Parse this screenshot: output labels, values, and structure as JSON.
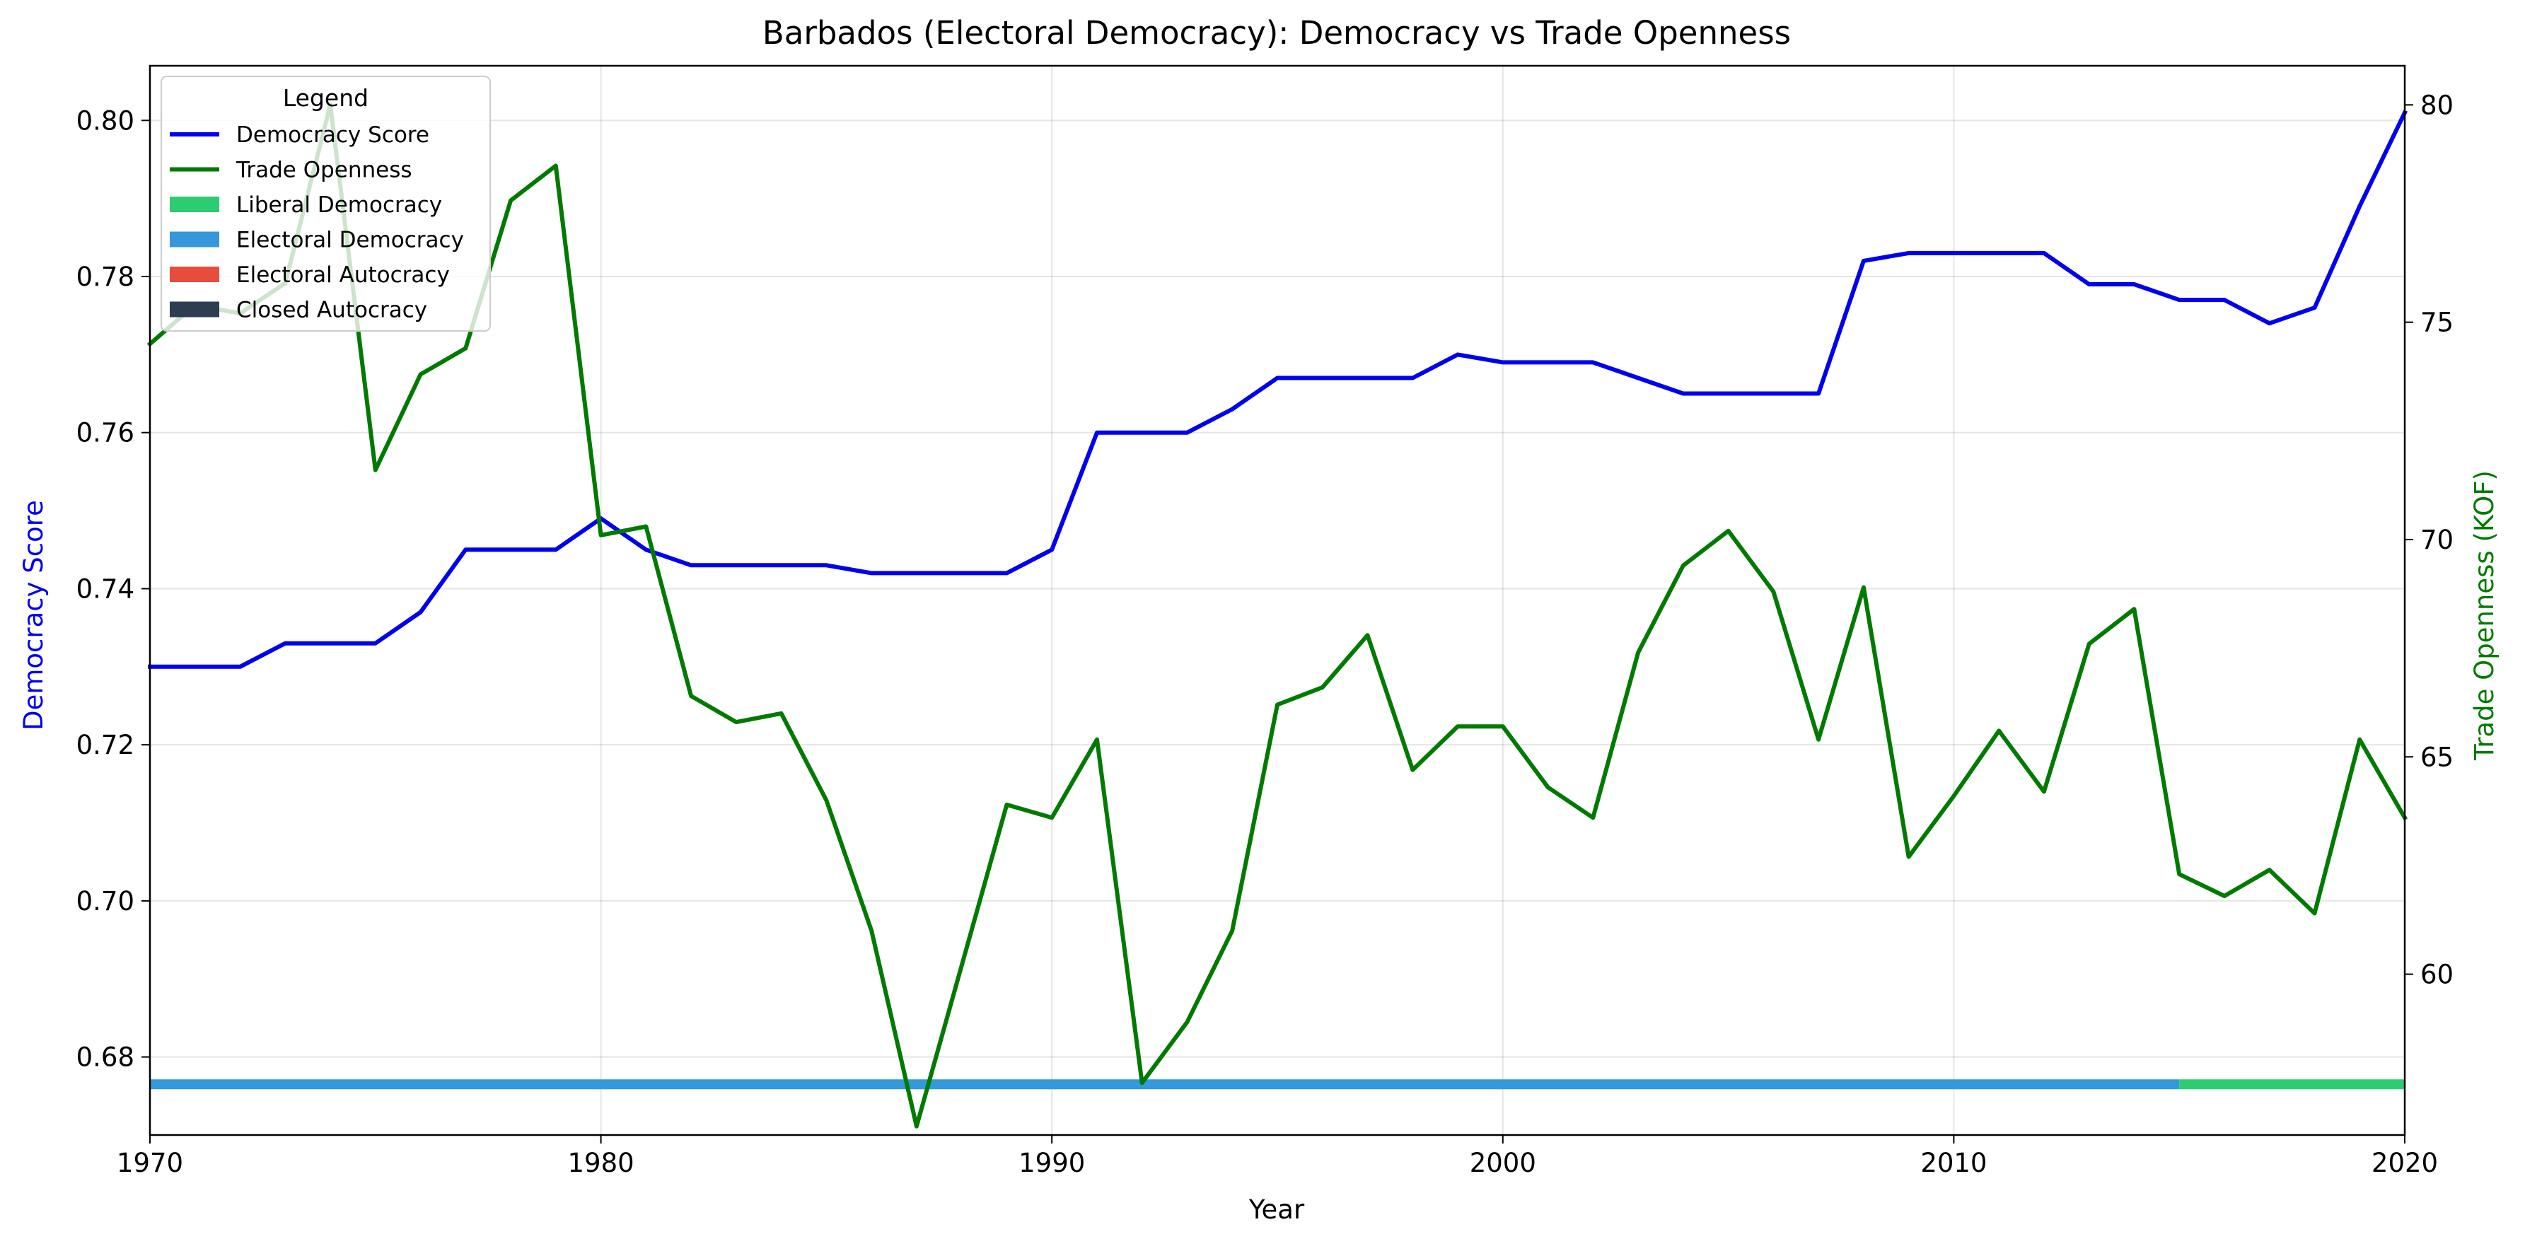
{
  "chart_data": {
    "type": "line",
    "title": "Barbados (Electoral Democracy): Democracy vs Trade Openness",
    "xlabel": "Year",
    "ylabel_left": "Democracy Score",
    "ylabel_right": "Trade Openness (KOF)",
    "xlim": [
      1970,
      2020
    ],
    "ylim_left": [
      0.67,
      0.807
    ],
    "ylim_right": [
      56.3,
      80.9
    ],
    "x_ticks": [
      1970,
      1980,
      1990,
      2000,
      2010,
      2020
    ],
    "y_ticks_left": [
      0.68,
      0.7,
      0.72,
      0.74,
      0.76,
      0.78,
      0.8
    ],
    "y_ticks_right": [
      60,
      65,
      70,
      75,
      80
    ],
    "grid": true,
    "legend": {
      "title": "Legend",
      "placement": "upper-left",
      "entries": [
        {
          "label": "Democracy Score",
          "type": "line",
          "color": "#0000ee"
        },
        {
          "label": "Trade Openness",
          "type": "line",
          "color": "#007a00"
        },
        {
          "label": "Liberal Democracy",
          "type": "patch",
          "color": "#2ecc71"
        },
        {
          "label": "Electoral Democracy",
          "type": "patch",
          "color": "#3498db"
        },
        {
          "label": "Electoral Autocracy",
          "type": "patch",
          "color": "#e74c3c"
        },
        {
          "label": "Closed Autocracy",
          "type": "patch",
          "color": "#2c3e50"
        }
      ]
    },
    "x": [
      1970,
      1971,
      1972,
      1973,
      1974,
      1975,
      1976,
      1977,
      1978,
      1979,
      1980,
      1981,
      1982,
      1983,
      1984,
      1985,
      1986,
      1987,
      1988,
      1989,
      1990,
      1991,
      1992,
      1993,
      1994,
      1995,
      1996,
      1997,
      1998,
      1999,
      2000,
      2001,
      2002,
      2003,
      2004,
      2005,
      2006,
      2007,
      2008,
      2009,
      2010,
      2011,
      2012,
      2013,
      2014,
      2015,
      2016,
      2017,
      2018,
      2019,
      2020
    ],
    "series": [
      {
        "name": "Democracy Score",
        "axis": "left",
        "color": "#0000ee",
        "values": [
          0.73,
          0.73,
          0.73,
          0.733,
          0.733,
          0.733,
          0.737,
          0.745,
          0.745,
          0.745,
          0.749,
          0.745,
          0.743,
          0.743,
          0.743,
          0.743,
          0.742,
          0.742,
          0.742,
          0.742,
          0.745,
          0.76,
          0.76,
          0.76,
          0.763,
          0.767,
          0.767,
          0.767,
          0.767,
          0.77,
          0.769,
          0.769,
          0.769,
          0.767,
          0.765,
          0.765,
          0.765,
          0.765,
          0.782,
          0.783,
          0.783,
          0.783,
          0.783,
          0.779,
          0.779,
          0.777,
          0.777,
          0.774,
          0.776,
          0.789,
          0.801
        ]
      },
      {
        "name": "Trade Openness",
        "axis": "right",
        "color": "#007a00",
        "values": [
          74.5,
          75.4,
          75.2,
          75.9,
          80.0,
          71.6,
          73.8,
          74.4,
          77.8,
          78.6,
          70.1,
          70.3,
          66.4,
          65.8,
          66.0,
          64.0,
          61.0,
          56.5,
          60.2,
          63.9,
          63.6,
          65.4,
          57.5,
          58.9,
          61.0,
          66.2,
          66.6,
          67.8,
          64.7,
          65.7,
          65.7,
          64.3,
          63.6,
          67.4,
          69.4,
          70.2,
          68.8,
          65.4,
          68.9,
          62.7,
          64.1,
          65.6,
          64.2,
          67.6,
          68.4,
          62.3,
          61.8,
          62.4,
          61.4,
          65.4,
          63.6
        ]
      }
    ],
    "regime_bar": {
      "y": 0.6765,
      "segments": [
        {
          "label": "Electoral Democracy",
          "start": 1970,
          "end": 2015,
          "color": "#3498db"
        },
        {
          "label": "Liberal Democracy",
          "start": 2015,
          "end": 2020,
          "color": "#2ecc71"
        }
      ]
    }
  }
}
